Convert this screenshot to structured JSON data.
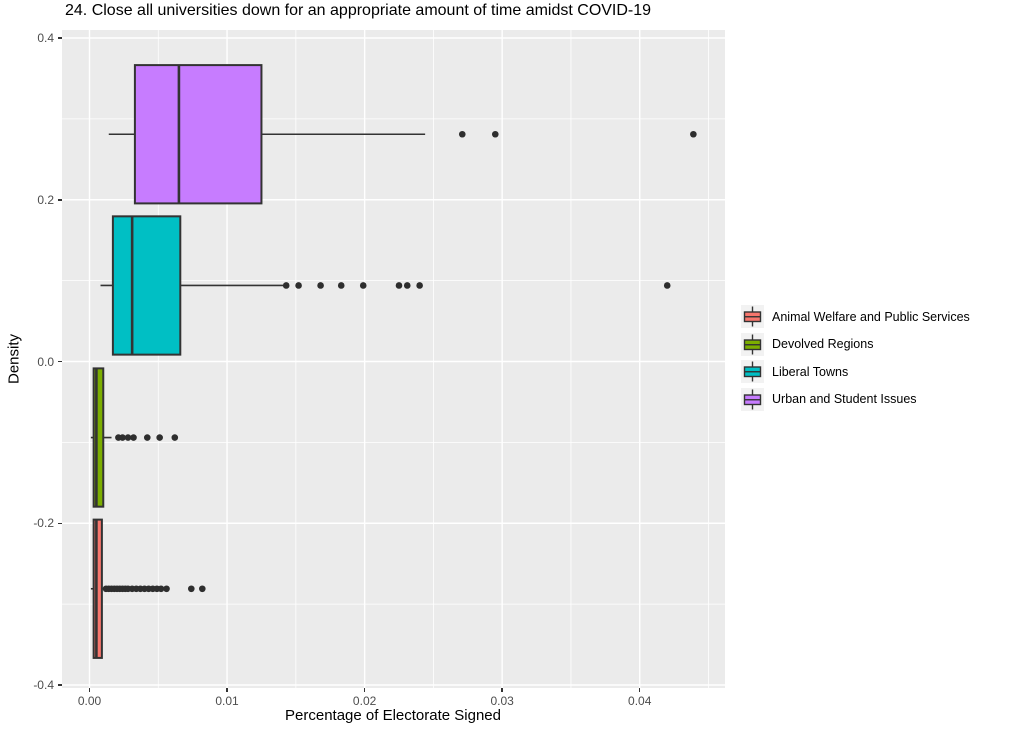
{
  "chart_data": {
    "type": "boxplot",
    "orientation": "horizontal",
    "title": "24. Close all universities down for an appropriate amount of time amidst COVID-19",
    "xlabel": "Percentage of Electorate Signed",
    "ylabel": "Density",
    "legend_position": "right",
    "grid": true,
    "panel_bg": "#EBEBEB",
    "grid_color": "#FFFFFF",
    "box_outline_color": "#333333",
    "outlier_color": "#2E2E2E",
    "tick_label_color": "#4D4D4D",
    "legend_key_bg": "#F2F2F2",
    "xlim": [
      -0.002,
      0.0462
    ],
    "ylim": [
      -0.4037,
      0.4099
    ],
    "x_ticks": [
      {
        "value": 0,
        "label": "0.00"
      },
      {
        "value": 0.01,
        "label": "0.01"
      },
      {
        "value": 0.02,
        "label": "0.02"
      },
      {
        "value": 0.03,
        "label": "0.03"
      },
      {
        "value": 0.04,
        "label": "0.04"
      }
    ],
    "x_minor_ticks": [
      0.005,
      0.015,
      0.025,
      0.035,
      0.045
    ],
    "y_ticks": [
      {
        "value": 0.4,
        "label": "0.4"
      },
      {
        "value": 0.2,
        "label": "0.2"
      },
      {
        "value": 0,
        "label": "0.0"
      },
      {
        "value": -0.2,
        "label": "-0.2"
      },
      {
        "value": -0.4,
        "label": "-0.4"
      }
    ],
    "y_minor_ticks": [
      0.3,
      0.1,
      -0.1,
      -0.3
    ],
    "box_half_height": 0.0855,
    "series": [
      {
        "name": "Animal Welfare and Public Services",
        "color": "#F8766D",
        "y_center": -0.281,
        "whisker_low": 0.0001,
        "q1": 0.0003,
        "median": 0.0005,
        "q3": 0.0009,
        "whisker_high": 0.0011,
        "outliers": [
          0.0012,
          0.0014,
          0.0016,
          0.0018,
          0.002,
          0.0022,
          0.0024,
          0.0026,
          0.0028,
          0.0031,
          0.0034,
          0.0037,
          0.004,
          0.0043,
          0.0046,
          0.0049,
          0.0052,
          0.0056,
          0.0074,
          0.0082
        ]
      },
      {
        "name": "Devolved Regions",
        "color": "#7CAE00",
        "y_center": -0.094,
        "whisker_low": 0.0001,
        "q1": 0.0003,
        "median": 0.0005,
        "q3": 0.001,
        "whisker_high": 0.0016,
        "outliers": [
          0.0021,
          0.0024,
          0.0028,
          0.0032,
          0.0042,
          0.0051,
          0.0062
        ]
      },
      {
        "name": "Liberal Towns",
        "color": "#00BFC4",
        "y_center": 0.094,
        "whisker_low": 0.0008,
        "q1": 0.0017,
        "median": 0.0031,
        "q3": 0.0066,
        "whisker_high": 0.0141,
        "outliers": [
          0.0143,
          0.0152,
          0.0168,
          0.0183,
          0.0199,
          0.0225,
          0.0231,
          0.024,
          0.042
        ]
      },
      {
        "name": "Urban and Student Issues",
        "color": "#C77CFF",
        "y_center": 0.281,
        "whisker_low": 0.0014,
        "q1": 0.0033,
        "median": 0.0065,
        "q3": 0.0125,
        "whisker_high": 0.0244,
        "outliers": [
          0.0271,
          0.0295,
          0.0439
        ]
      }
    ]
  }
}
